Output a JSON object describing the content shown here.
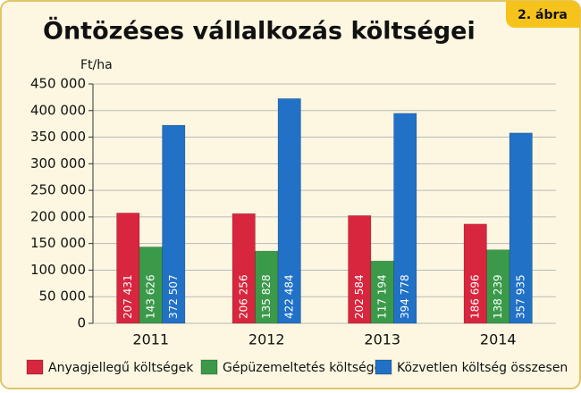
{
  "chart_data": {
    "type": "bar",
    "title": "Öntözéses vállalkozás költségei",
    "badge": "2. ábra",
    "y_label": "Ft/ha",
    "categories": [
      "2011",
      "2012",
      "2013",
      "2014"
    ],
    "series": [
      {
        "name": "Anyagjellegű költségek",
        "color": "#d8263e",
        "values": [
          207431,
          206256,
          202584,
          186696
        ],
        "value_labels": [
          "207 431",
          "206 256",
          "202 584",
          "186 696"
        ]
      },
      {
        "name": "Gépüzemeltetés költségei",
        "color": "#3b9a4a",
        "values": [
          143626,
          135828,
          117194,
          138239
        ],
        "value_labels": [
          "143 626",
          "135 828",
          "117 194",
          "138 239"
        ]
      },
      {
        "name": "Közvetlen költség összesen",
        "color": "#2171c7",
        "values": [
          372507,
          422484,
          394778,
          357935
        ],
        "value_labels": [
          "372 507",
          "422 484",
          "394 778",
          "357 935"
        ]
      }
    ],
    "ylim": [
      0,
      450000
    ],
    "yticks": [
      0,
      {
        "value": 50000,
        "label": "50 000"
      },
      {
        "value": 100000,
        "label": "100 000"
      },
      {
        "value": 150000,
        "label": "150 000"
      },
      {
        "value": 200000,
        "label": "200 000"
      },
      {
        "value": 250000,
        "label": "250 000"
      },
      {
        "value": 300000,
        "label": "300 000"
      },
      {
        "value": 350000,
        "label": "350 000"
      },
      {
        "value": 400000,
        "label": "400 000"
      },
      {
        "value": 450000,
        "label": "450 000"
      }
    ],
    "grid": true
  }
}
